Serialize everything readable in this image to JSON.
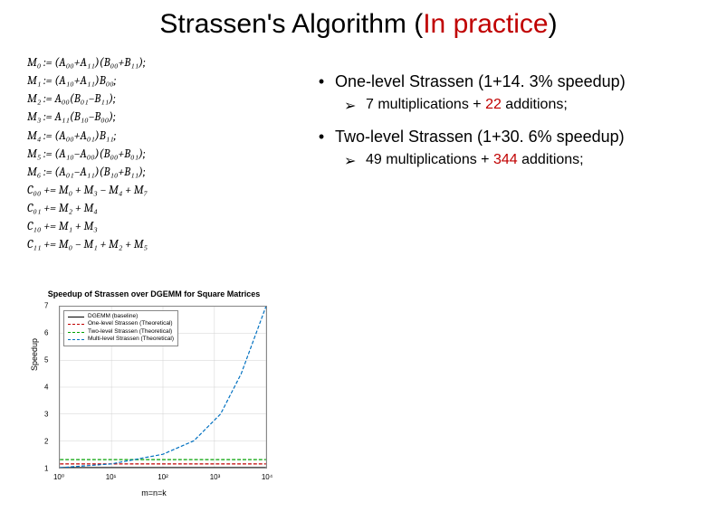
{
  "title": {
    "main": "Strassen's Algorithm ",
    "paren_open": "(",
    "highlight": "In practice",
    "paren_close": ")"
  },
  "equations": [
    "M₀ := (A₀₀+A₁₁)(B₀₀+B₁₁);",
    "M₁ := (A₁₀+A₁₁)B₀₀;",
    "M₂ := A₀₀(B₀₁−B₁₁);",
    "M₃ := A₁₁(B₁₀−B₀₀);",
    "M₄ := (A₀₀+A₀₁)B₁₁;",
    "M₅ := (A₁₀−A₀₀)(B₀₀+B₀₁);",
    "M₆ := (A₀₁−A₁₁)(B₁₀+B₁₁);",
    "C₀₀ += M₀ + M₃ − M₄ + M₇",
    "C₀₁ += M₂ + M₄",
    "C₁₀ += M₁ + M₃",
    "C₁₁ += M₀ − M₁ + M₂ + M₅"
  ],
  "bullets": [
    {
      "main": "One-level Strassen (1+14. 3% speedup)",
      "sub_parts": [
        "7 multiplications + ",
        "22",
        " additions;"
      ]
    },
    {
      "main": "Two-level Strassen (1+30. 6% speedup)",
      "sub_parts": [
        "49 multiplications + ",
        "344",
        " additions;"
      ]
    }
  ],
  "chart": {
    "title": "Speedup of Strassen over DGEMM for Square Matrices",
    "ylabel": "Speedup",
    "xlabel": "m=n=k",
    "ylim": [
      1,
      7
    ],
    "yticks": [
      1,
      2,
      3,
      4,
      5,
      6,
      7
    ],
    "xticks_labels": [
      "10⁰",
      "10¹",
      "10²",
      "10³",
      "10⁴"
    ],
    "xticks_pos": [
      0,
      0.25,
      0.5,
      0.75,
      1.0
    ],
    "grid_color": "#d0d0d0",
    "background": "#ffffff",
    "legend": [
      {
        "label": "DGEMM (baseline)",
        "color": "#000000",
        "dash": ""
      },
      {
        "label": "One-level Strassen (Theoretical)",
        "color": "#c00000",
        "dash": "4,2"
      },
      {
        "label": "Two-level Strassen (Theoretical)",
        "color": "#00a000",
        "dash": "4,2"
      },
      {
        "label": "Multi-level Strassen (Theoretical)",
        "color": "#0070c0",
        "dash": "4,2"
      }
    ],
    "series": [
      {
        "color": "#000000",
        "width": 1.2,
        "dash": "",
        "points": [
          [
            0,
            1
          ],
          [
            1,
            1
          ]
        ]
      },
      {
        "color": "#c00000",
        "width": 1.2,
        "dash": "4,2",
        "points": [
          [
            0,
            1.14
          ],
          [
            1,
            1.14
          ]
        ]
      },
      {
        "color": "#00a000",
        "width": 1.2,
        "dash": "4,2",
        "points": [
          [
            0,
            1.3
          ],
          [
            1,
            1.3
          ]
        ]
      },
      {
        "color": "#0070c0",
        "width": 1.2,
        "dash": "4,2",
        "points": [
          [
            0,
            1
          ],
          [
            0.25,
            1.14
          ],
          [
            0.5,
            1.5
          ],
          [
            0.65,
            2.0
          ],
          [
            0.78,
            3.0
          ],
          [
            0.88,
            4.5
          ],
          [
            1.0,
            7.0
          ]
        ]
      }
    ]
  },
  "colors": {
    "accent_red": "#c00000"
  }
}
